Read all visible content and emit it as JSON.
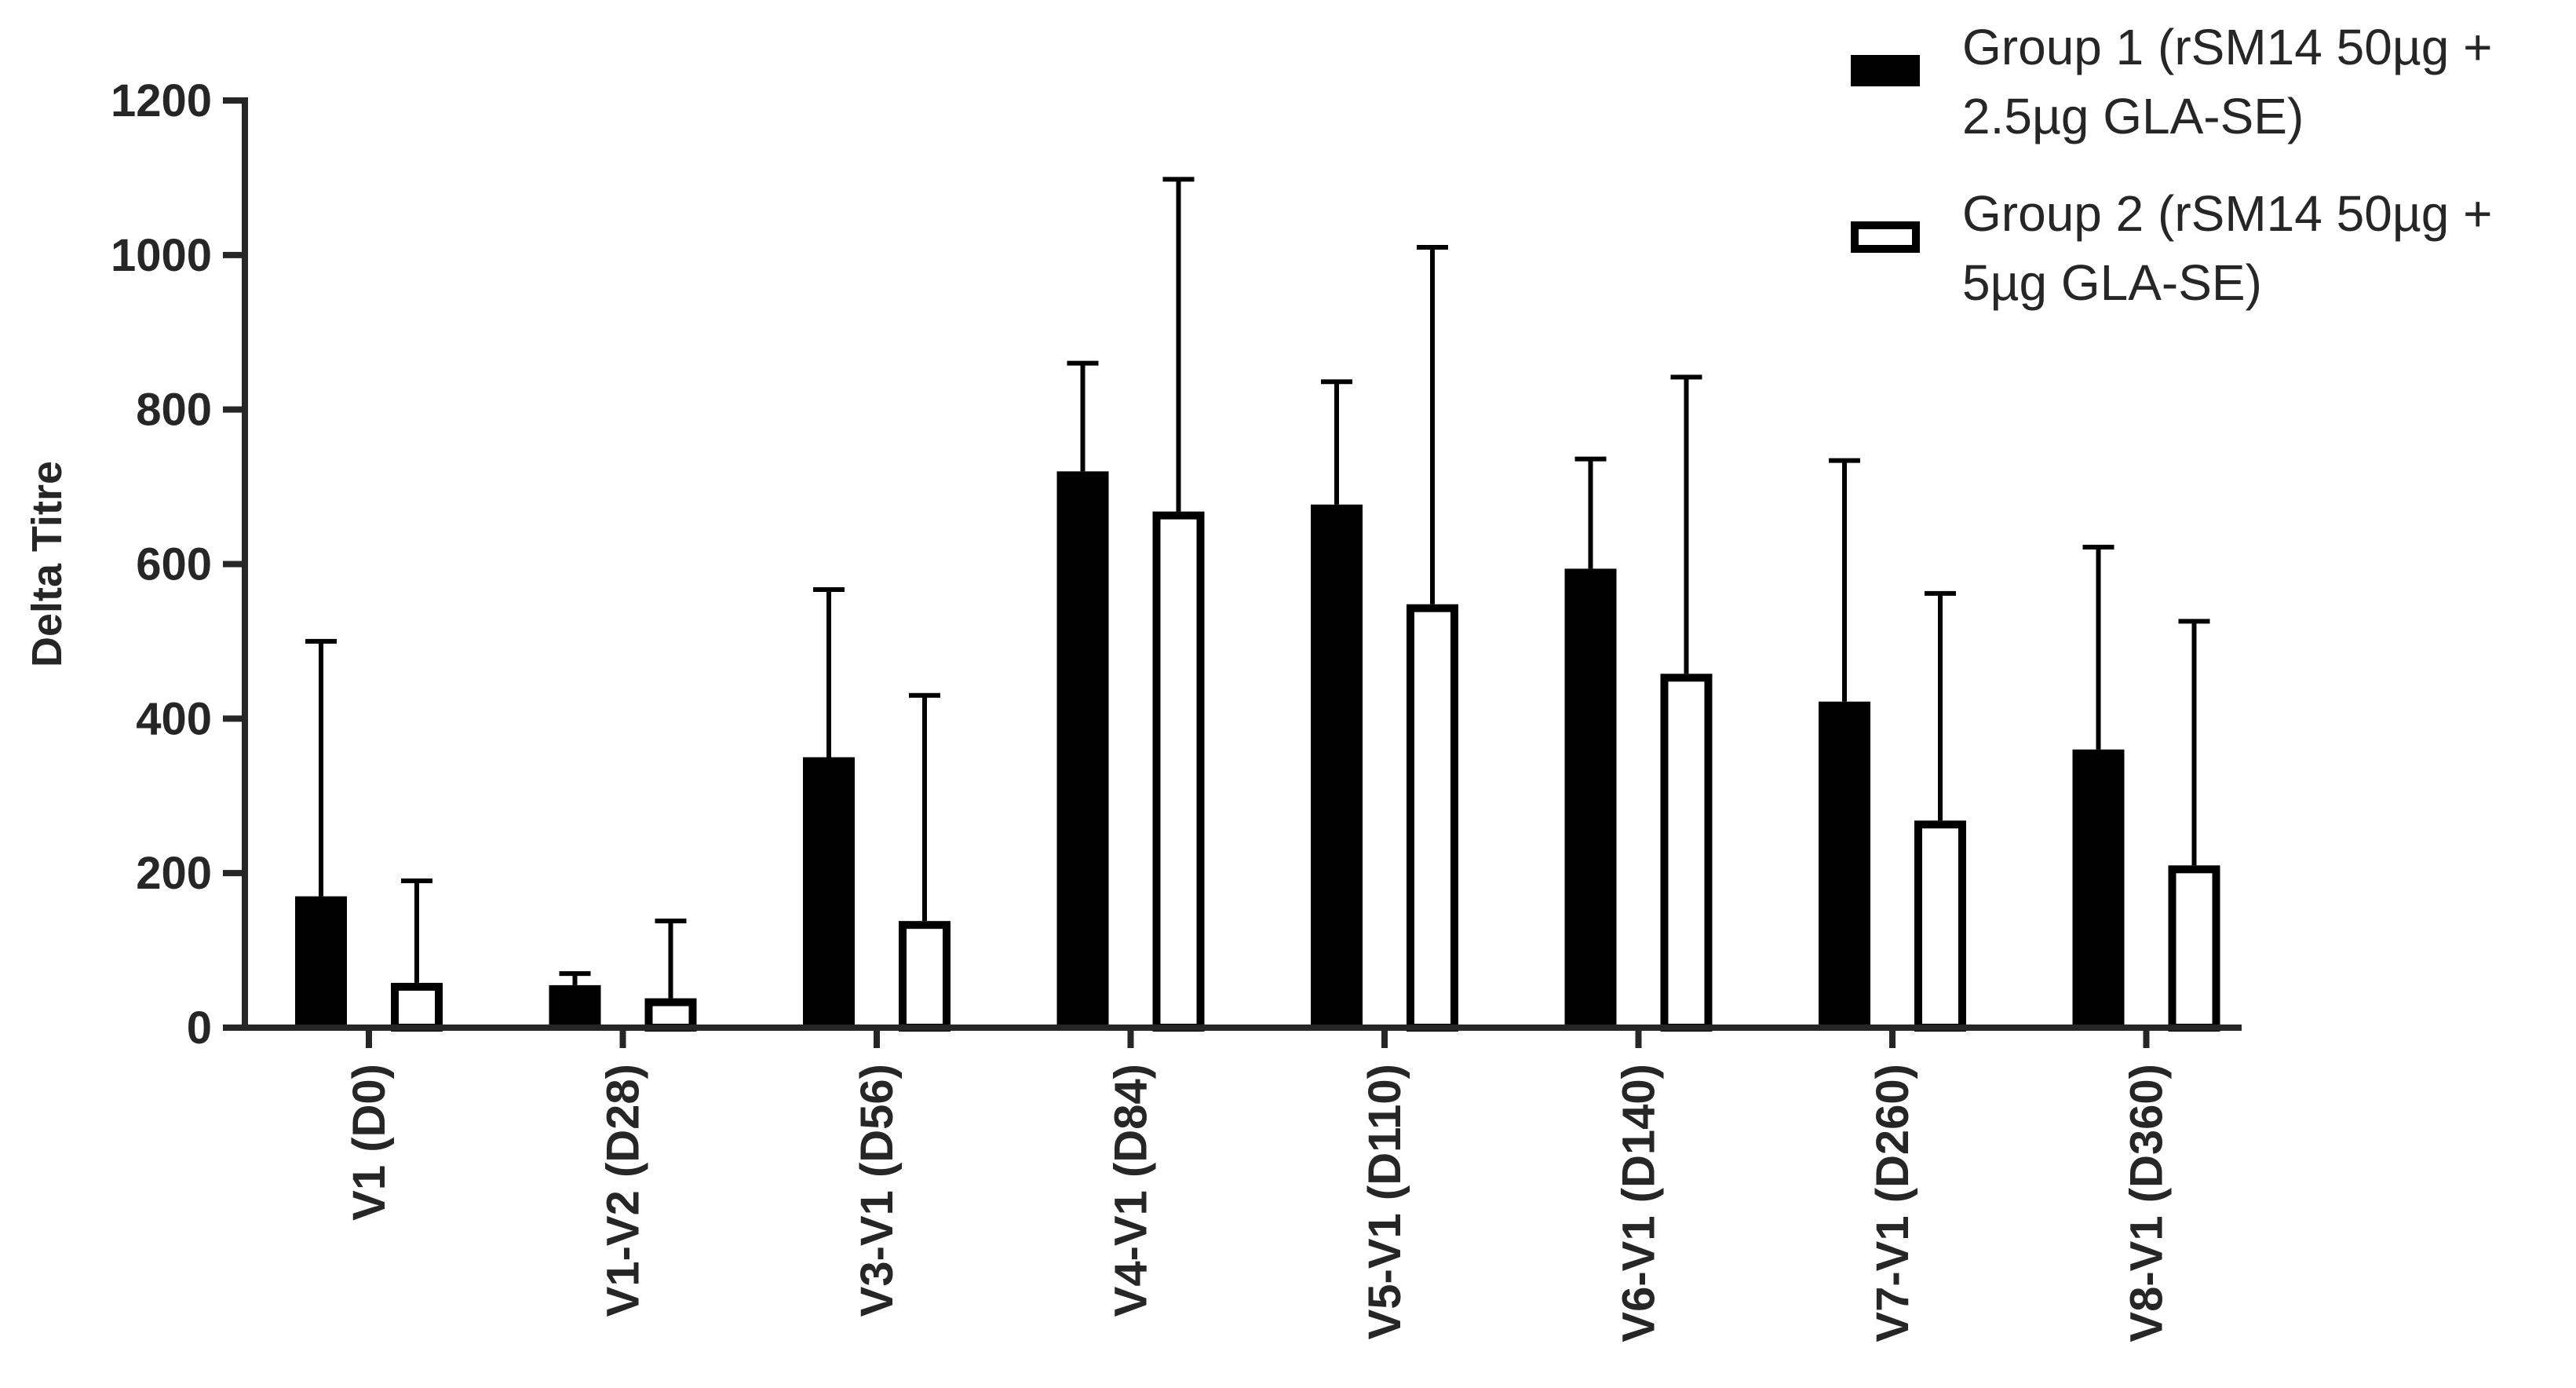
{
  "chart_data": {
    "type": "bar",
    "title": "",
    "xlabel": "",
    "ylabel": "Delta Titre",
    "ylim": [
      0,
      1200
    ],
    "yticks": [
      0,
      200,
      400,
      600,
      800,
      1000,
      1200
    ],
    "grid": false,
    "legend_position": "top-right",
    "categories": [
      "V1 (D0)",
      "V1-V2 (D28)",
      "V3-V1 (D56)",
      "V4-V1 (D84)",
      "V5-V1 (D110)",
      "V6-V1 (D140)",
      "V7-V1 (D260)",
      "V8-V1 (D360)"
    ],
    "series": [
      {
        "name": "Group 1 (rSM14 50µg + 2.5µg GLA-SE)",
        "legend_lines": [
          "Group 1 (rSM14 50µg +",
          "2.5µg GLA-SE)"
        ],
        "fill": "#000000",
        "values": [
          170,
          55,
          350,
          720,
          677,
          594,
          422,
          360
        ],
        "error_upper": [
          500,
          70,
          567,
          860,
          836,
          736,
          734,
          622
        ]
      },
      {
        "name": "Group 2 (rSM14 50µg + 5µg GLA-SE)",
        "legend_lines": [
          "Group 2 (rSM14 50µg +",
          "5µg GLA-SE)"
        ],
        "fill": "#ffffff",
        "values": [
          58,
          38,
          138,
          668,
          548,
          458,
          268,
          210
        ],
        "error_upper": [
          190,
          138,
          430,
          1098,
          1010,
          842,
          562,
          526
        ]
      }
    ]
  }
}
